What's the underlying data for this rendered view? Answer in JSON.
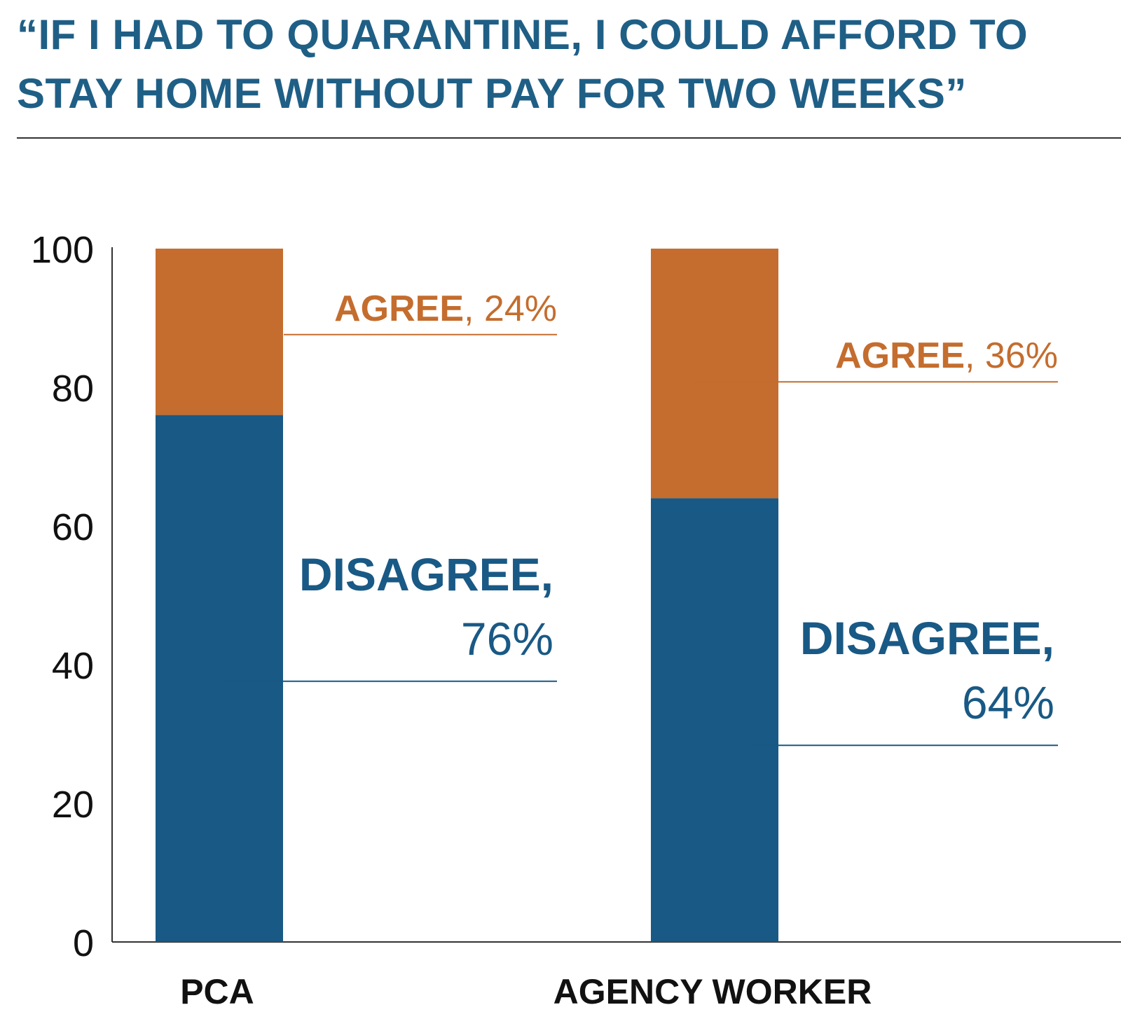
{
  "title": "“IF I HAD TO QUARANTINE, I COULD AFFORD TO STAY HOME WITHOUT PAY FOR TWO WEEKS”",
  "colors": {
    "title": "#1f5f86",
    "disagree": "#195985",
    "agree": "#c46d2e",
    "axis": "#333333"
  },
  "chart_data": {
    "type": "bar",
    "stacked": true,
    "title": "“IF I HAD TO QUARANTINE, I COULD AFFORD TO STAY HOME WITHOUT PAY FOR TWO WEEKS”",
    "categories": [
      "PCA",
      "AGENCY WORKER"
    ],
    "series": [
      {
        "name": "DISAGREE",
        "values": [
          76,
          64
        ],
        "labels": [
          {
            "name": "DISAGREE,",
            "value": "76%"
          },
          {
            "name": "DISAGREE,",
            "value": "64%"
          }
        ]
      },
      {
        "name": "AGREE",
        "values": [
          24,
          36
        ],
        "labels": [
          {
            "name": "AGREE",
            "value": ", 24%"
          },
          {
            "name": "AGREE",
            "value": ", 36%"
          }
        ]
      }
    ],
    "xlabel": "",
    "ylabel": "",
    "ylim": [
      0,
      100
    ],
    "yticks": [
      "0",
      "20",
      "40",
      "60",
      "80",
      "100"
    ],
    "grid": false,
    "legend": "none"
  }
}
